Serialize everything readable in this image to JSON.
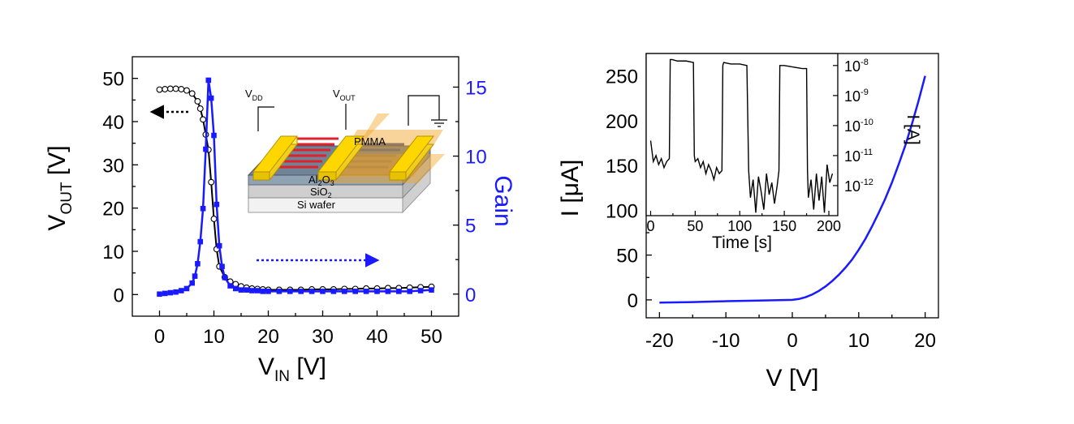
{
  "chart_data": [
    {
      "type": "line",
      "panel": "left",
      "xlabel": "V",
      "xlabel_sub": "IN",
      "xlabel_unit": " [V]",
      "ylabel": "V",
      "ylabel_sub": "OUT",
      "ylabel_unit": " [V]",
      "y2label": "Gain",
      "xlim": [
        -5,
        55
      ],
      "ylim": [
        -5,
        55
      ],
      "y2lim": [
        -1.6,
        17.2
      ],
      "xticks": [
        "0",
        "10",
        "20",
        "30",
        "40",
        "50"
      ],
      "yticks": [
        "0",
        "10",
        "20",
        "30",
        "40",
        "50"
      ],
      "y2ticks": [
        "0",
        "5",
        "10",
        "15"
      ],
      "series": [
        {
          "axis": "left",
          "color": "#000000",
          "marker": "open-circle",
          "x": [
            0,
            1,
            2,
            3,
            4,
            5,
            6,
            7,
            7.5,
            8,
            8.5,
            9,
            9.5,
            10,
            10.5,
            11,
            12,
            13,
            14,
            15,
            16,
            17,
            18,
            19,
            20,
            22,
            24,
            26,
            28,
            30,
            32,
            34,
            36,
            38,
            40,
            42,
            44,
            46,
            48,
            50
          ],
          "y": [
            47.4,
            47.5,
            47.6,
            47.6,
            47.5,
            47.2,
            46.5,
            44.7,
            43,
            40.5,
            37,
            33.5,
            26,
            17.5,
            10.5,
            6.5,
            4,
            3,
            2.4,
            1.9,
            1.6,
            1.4,
            1.3,
            1.2,
            1.1,
            1.1,
            1.1,
            1.1,
            1.2,
            1.2,
            1.2,
            1.3,
            1.3,
            1.4,
            1.4,
            1.5,
            1.5,
            1.6,
            1.7,
            1.8
          ]
        },
        {
          "axis": "right",
          "color": "#1a1aff",
          "marker": "filled-square",
          "x": [
            0,
            1,
            2,
            3,
            4,
            5,
            6,
            6.5,
            7,
            7.5,
            8,
            8.5,
            9,
            9.5,
            10,
            10.5,
            11,
            11.5,
            12,
            13,
            14,
            15,
            16,
            17,
            18,
            19,
            20,
            22,
            24,
            26,
            28,
            30,
            32,
            34,
            36,
            38,
            40,
            42,
            44,
            46,
            48,
            50
          ],
          "y": [
            0,
            0.05,
            0.1,
            0.15,
            0.25,
            0.4,
            0.8,
            1.3,
            2.2,
            3.8,
            6.2,
            10.5,
            15.5,
            14.2,
            11.5,
            6.5,
            3.5,
            2,
            1.2,
            0.6,
            0.4,
            0.3,
            0.3,
            0.25,
            0.25,
            0.2,
            0.2,
            0.2,
            0.2,
            0.2,
            0.2,
            0.2,
            0.2,
            0.2,
            0.2,
            0.2,
            0.2,
            0.2,
            0.2,
            0.2,
            0.25,
            0.3
          ]
        }
      ],
      "device_labels": {
        "vdd": "V",
        "vdd_sub": "DD",
        "vout": "V",
        "vout_sub": "OUT",
        "layer1": "Al",
        "layer1_sub1": "2",
        "layer1_mid": "O",
        "layer1_sub2": "3",
        "layer2": "SiO",
        "layer2_sub": "2",
        "layer3": "Si wafer",
        "top_layer": "PMMA"
      }
    },
    {
      "type": "line",
      "panel": "right",
      "xlabel": "V [V]",
      "ylabel": "I [μA]",
      "xlim": [
        -22,
        22
      ],
      "ylim": [
        -20,
        275
      ],
      "xticks": [
        "-20",
        "-10",
        "0",
        "10",
        "20"
      ],
      "yticks": [
        "0",
        "50",
        "100",
        "150",
        "200",
        "250"
      ],
      "series": [
        {
          "color": "#1a1aff",
          "x": [
            -20,
            -15,
            -10,
            -5,
            0,
            1,
            2,
            3,
            4,
            5,
            6,
            7,
            8,
            9,
            10,
            11,
            12,
            13,
            14,
            15,
            16,
            17,
            18,
            19,
            20
          ],
          "y": [
            -3,
            -2.5,
            -1.5,
            -0.8,
            0,
            1,
            3,
            6,
            10,
            15,
            21,
            28,
            36,
            45,
            56,
            68,
            82,
            97,
            113,
            131,
            151,
            172,
            196,
            222,
            250
          ]
        }
      ]
    },
    {
      "type": "line",
      "panel": "inset",
      "xlabel": "Time [s]",
      "ylabel": "I [A]",
      "yscale": "log",
      "xlim": [
        -5,
        210
      ],
      "ylim_exp": [
        -13,
        -7.6
      ],
      "xticks": [
        "0",
        "50",
        "100",
        "150",
        "200"
      ],
      "ytick_base": "10",
      "ytick_exps": [
        "-8",
        "-9",
        "-10",
        "-11",
        "-12"
      ],
      "series": [
        {
          "color": "#000000",
          "x": [
            0,
            3,
            6,
            9,
            12,
            15,
            18,
            21,
            22,
            24,
            30,
            40,
            48,
            49,
            50,
            53,
            56,
            59,
            62,
            65,
            68,
            71,
            74,
            77,
            80,
            81,
            82,
            90,
            100,
            108,
            110,
            112,
            115,
            118,
            121,
            124,
            127,
            130,
            133,
            136,
            139,
            142,
            144,
            145,
            150,
            160,
            170,
            175,
            176,
            177,
            180,
            183,
            186,
            189,
            192,
            195,
            198,
            201,
            204
          ],
          "y_exp": [
            -10.5,
            -11.2,
            -11,
            -11.3,
            -11.1,
            -11.4,
            -11.2,
            -11.1,
            -7.8,
            -7.8,
            -7.85,
            -7.85,
            -7.9,
            -11,
            -11.2,
            -11.1,
            -11.4,
            -11.2,
            -11.6,
            -11.3,
            -11.5,
            -11.8,
            -11.4,
            -11.6,
            -11.5,
            -8,
            -7.9,
            -7.95,
            -7.95,
            -8,
            -11.5,
            -12.4,
            -11.8,
            -12.9,
            -11.7,
            -12.2,
            -12.8,
            -11.6,
            -12.3,
            -11.9,
            -12.6,
            -12,
            -11.5,
            -8,
            -8,
            -8.05,
            -8.1,
            -8.1,
            -11.5,
            -12.4,
            -11.8,
            -12.8,
            -11.6,
            -12.5,
            -11.7,
            -12.9,
            -11.3,
            -11.9,
            -11.6
          ]
        }
      ]
    }
  ]
}
